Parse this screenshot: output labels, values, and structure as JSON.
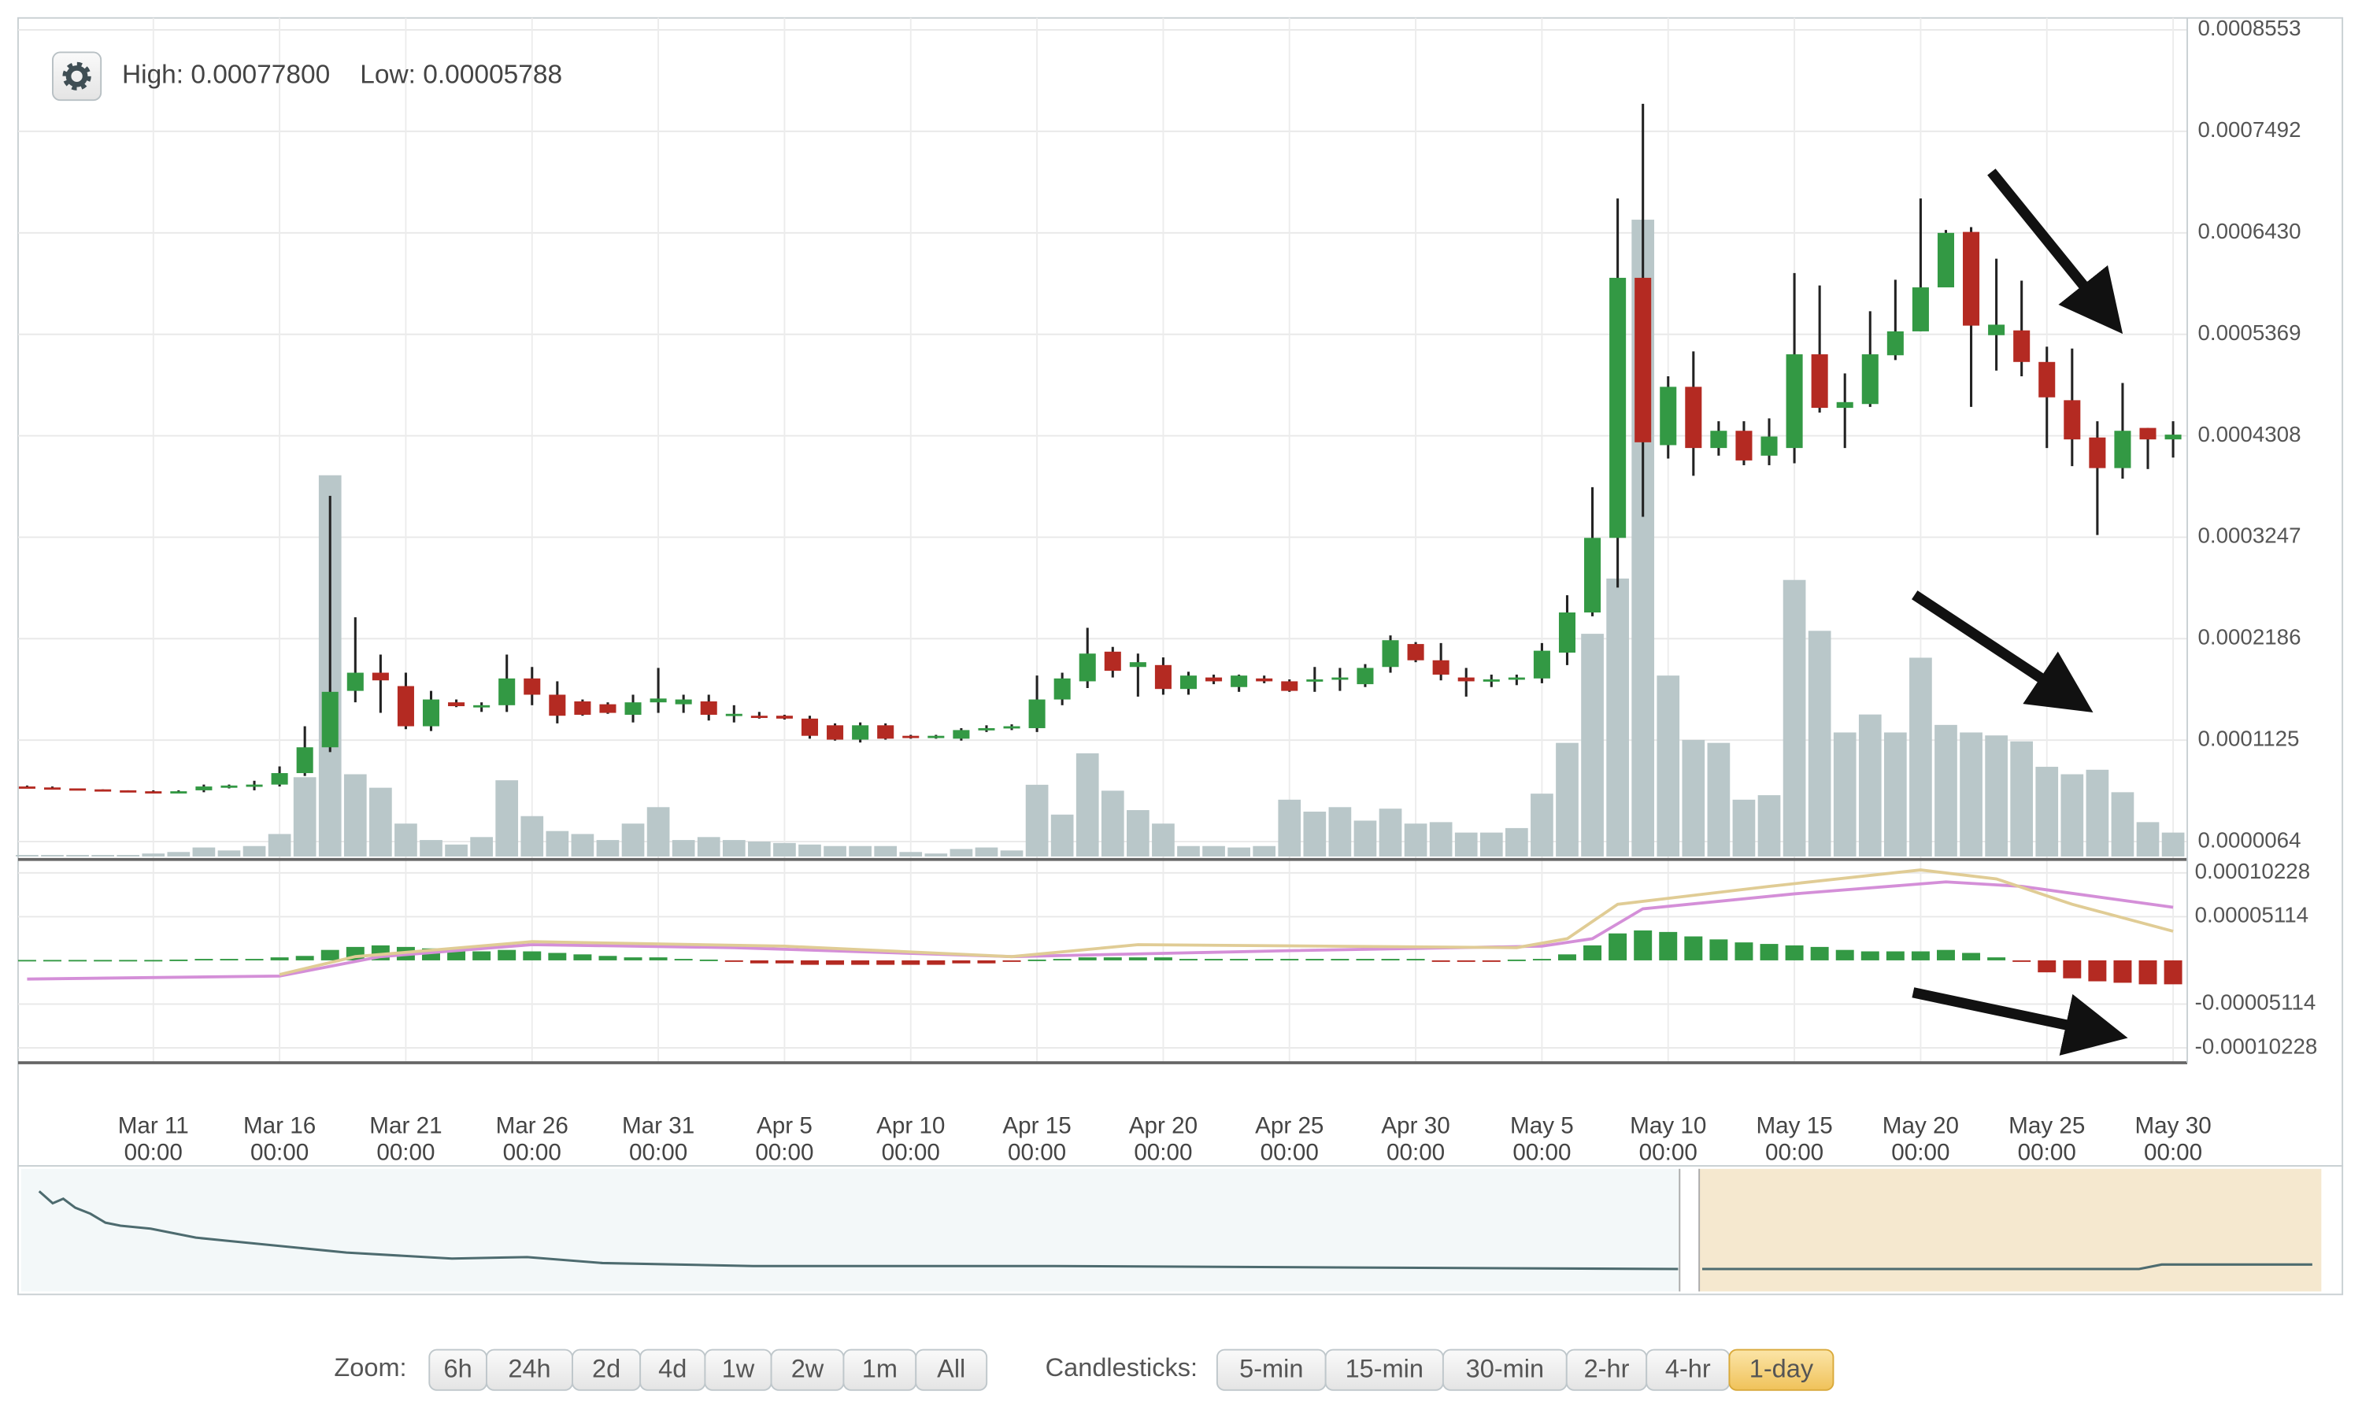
{
  "chart_data": {
    "type": "candlestick",
    "high_label": "High: 0.00077800",
    "low_label": "Low: 0.00005788",
    "categories": [
      "Mar 6",
      "Mar 7",
      "Mar 8",
      "Mar 9",
      "Mar 10",
      "Mar 11",
      "Mar 12",
      "Mar 13",
      "Mar 14",
      "Mar 15",
      "Mar 16",
      "Mar 17",
      "Mar 18",
      "Mar 19",
      "Mar 20",
      "Mar 21",
      "Mar 22",
      "Mar 23",
      "Mar 24",
      "Mar 25",
      "Mar 26",
      "Mar 27",
      "Mar 28",
      "Mar 29",
      "Mar 30",
      "Mar 31",
      "Apr 1",
      "Apr 2",
      "Apr 3",
      "Apr 4",
      "Apr 5",
      "Apr 6",
      "Apr 7",
      "Apr 8",
      "Apr 9",
      "Apr 10",
      "Apr 11",
      "Apr 12",
      "Apr 13",
      "Apr 14",
      "Apr 15",
      "Apr 16",
      "Apr 17",
      "Apr 18",
      "Apr 19",
      "Apr 20",
      "Apr 21",
      "Apr 22",
      "Apr 23",
      "Apr 24",
      "Apr 25",
      "Apr 26",
      "Apr 27",
      "Apr 28",
      "Apr 29",
      "Apr 30",
      "May 1",
      "May 2",
      "May 3",
      "May 4",
      "May 5",
      "May 6",
      "May 7",
      "May 8",
      "May 9",
      "May 10",
      "May 11",
      "May 12",
      "May 13",
      "May 14",
      "May 15",
      "May 16",
      "May 17",
      "May 18",
      "May 19",
      "May 20",
      "May 21",
      "May 22",
      "May 23",
      "May 24",
      "May 25",
      "May 26",
      "May 27",
      "May 28",
      "May 29",
      "May 30"
    ],
    "open": [
      6.4e-05,
      6.3e-05,
      6.2e-05,
      6.1e-05,
      6e-05,
      5.9e-05,
      5.9e-05,
      6e-05,
      6.4e-05,
      6.5e-05,
      6.6e-05,
      7.8e-05,
      0.000105,
      0.000164,
      0.000183,
      0.000169,
      0.000127,
      0.000152,
      0.000148,
      0.000149,
      0.000177,
      0.00016,
      0.000153,
      0.00015,
      0.000139,
      0.000152,
      0.00015,
      0.000153,
      0.000139,
      0.000138,
      0.000138,
      0.000135,
      0.000128,
      0.000113,
      0.000128,
      0.000117,
      0.000116,
      0.000114,
      0.000123,
      0.000125,
      0.000125,
      0.000155,
      0.000174,
      0.000205,
      0.000189,
      0.000191,
      0.000166,
      0.000178,
      0.000168,
      0.000177,
      0.000174,
      0.000174,
      0.000177,
      0.000171,
      0.000189,
      0.000213,
      0.000196,
      0.000178,
      0.000175,
      0.000176,
      0.000177,
      0.000204,
      0.000246,
      0.000324,
      0.000596,
      0.000421,
      0.000482,
      0.000418,
      0.000436,
      0.00041,
      0.000418,
      0.000516,
      0.00046,
      0.000464,
      0.000515,
      0.00054,
      0.000586,
      0.000644,
      0.000536,
      0.000541,
      0.000508,
      0.000468,
      0.000429,
      0.000397,
      0.000439,
      0.000427
    ],
    "high": [
      6.5e-05,
      6.4e-05,
      6.2e-05,
      6.1e-05,
      6e-05,
      6e-05,
      6e-05,
      6.6e-05,
      6.6e-05,
      7e-05,
      8.5e-05,
      0.000127,
      0.000368,
      0.000241,
      0.000202,
      0.000183,
      0.000164,
      0.000155,
      0.000152,
      0.000202,
      0.000189,
      0.000174,
      0.000155,
      0.000152,
      0.00016,
      0.000188,
      0.00016,
      0.00016,
      0.000149,
      0.000142,
      0.000139,
      0.000138,
      0.00013,
      0.000131,
      0.00013,
      0.000118,
      0.000118,
      0.000125,
      0.000128,
      0.000129,
      0.00018,
      0.000183,
      0.00023,
      0.00021,
      0.000203,
      0.000199,
      0.000184,
      0.000181,
      0.000181,
      0.00018,
      0.000176,
      0.000189,
      0.000188,
      0.000192,
      0.000222,
      0.000215,
      0.000214,
      0.000188,
      0.000181,
      0.000181,
      0.000214,
      0.000264,
      0.000377,
      0.000679,
      0.000778,
      0.000493,
      0.000519,
      0.000446,
      0.000446,
      0.000449,
      0.000601,
      0.000588,
      0.000496,
      0.000561,
      0.000594,
      0.000679,
      0.000646,
      0.000649,
      0.000616,
      0.000593,
      0.000524,
      0.000522,
      0.000446,
      0.000486,
      0.000439,
      0.000446
    ],
    "low": [
      6.2e-05,
      6.1e-05,
      6e-05,
      5.9e-05,
      5.788e-05,
      5.8e-05,
      5.8e-05,
      5.8e-05,
      6.2e-05,
      6e-05,
      6.4e-05,
      7.5e-05,
      0.0001,
      0.000152,
      0.000141,
      0.000124,
      0.000122,
      0.000147,
      0.000142,
      0.000142,
      0.000149,
      0.00013,
      0.000138,
      0.00014,
      0.000131,
      0.000141,
      0.000141,
      0.000133,
      0.000131,
      0.000135,
      0.000134,
      0.000114,
      0.000112,
      0.00011,
      0.000113,
      0.000114,
      0.000114,
      0.000112,
      0.000121,
      0.000123,
      0.000121,
      0.000149,
      0.000167,
      0.000178,
      0.000158,
      0.00016,
      0.00016,
      0.000171,
      0.000163,
      0.000172,
      0.000163,
      0.000163,
      0.000164,
      0.000168,
      0.000183,
      0.000194,
      0.000175,
      0.000158,
      0.000168,
      0.00017,
      0.000172,
      0.000191,
      0.000242,
      0.000272,
      0.000346,
      0.000407,
      0.000389,
      0.00041,
      0.0004,
      0.0004,
      0.000402,
      0.000455,
      0.000418,
      0.000461,
      0.00051,
      0.00054,
      0.000586,
      0.000461,
      0.000499,
      0.000493,
      0.000418,
      0.000399,
      0.000327,
      0.000386,
      0.000396,
      0.000408
    ],
    "close": [
      6.3e-05,
      6.2e-05,
      6.1e-05,
      6e-05,
      5.9e-05,
      5.8e-05,
      5.9e-05,
      6.4e-05,
      6.5e-05,
      6.6e-05,
      7.8e-05,
      0.000105,
      0.000163,
      0.000183,
      0.000175,
      0.000127,
      0.000155,
      0.000148,
      0.000149,
      0.000177,
      0.00016,
      0.000138,
      0.000139,
      0.000141,
      0.000152,
      0.000156,
      0.000155,
      0.000139,
      0.00014,
      0.000137,
      0.000135,
      0.000117,
      0.000113,
      0.000128,
      0.000114,
      0.000116,
      0.000117,
      0.000123,
      0.000125,
      0.000127,
      0.000155,
      0.000177,
      0.000203,
      0.000185,
      0.000194,
      0.000166,
      0.00018,
      0.000174,
      0.00018,
      0.000174,
      0.000164,
      0.000176,
      0.000178,
      0.000188,
      0.000217,
      0.000196,
      0.000181,
      0.000174,
      0.000176,
      0.000178,
      0.000206,
      0.000246,
      0.000324,
      0.000596,
      0.000424,
      0.000482,
      0.000418,
      0.000436,
      0.000405,
      0.00043,
      0.000516,
      0.00046,
      0.000466,
      0.000516,
      0.00054,
      0.000586,
      0.000643,
      0.000546,
      0.000547,
      0.000508,
      0.000471,
      0.000427,
      0.000397,
      0.000436,
      0.000427,
      0.000432
    ],
    "volume": [
      1.6e-06,
      1.6e-06,
      1.6e-06,
      1.6e-06,
      1.6e-06,
      3.1e-06,
      4.7e-06,
      9.4e-06,
      6.3e-06,
      1.09e-05,
      2.35e-05,
      8.29e-05,
      0.0003987,
      8.6e-05,
      7.19e-05,
      3.44e-05,
      1.72e-05,
      1.25e-05,
      2.03e-05,
      7.97e-05,
      4.22e-05,
      2.66e-05,
      2.35e-05,
      1.72e-05,
      3.44e-05,
      5.16e-05,
      1.72e-05,
      2.03e-05,
      1.72e-05,
      1.56e-05,
      1.41e-05,
      1.25e-05,
      1.09e-05,
      1.09e-05,
      1.09e-05,
      4.7e-06,
      3.1e-06,
      7.8e-06,
      9.4e-06,
      6.3e-06,
      7.5e-05,
      4.38e-05,
      0.0001079,
      6.88e-05,
      4.85e-05,
      3.44e-05,
      1.09e-05,
      1.09e-05,
      9.4e-06,
      1.09e-05,
      5.94e-05,
      4.69e-05,
      5.16e-05,
      3.75e-05,
      5e-05,
      3.44e-05,
      3.59e-05,
      2.5e-05,
      2.5e-05,
      2.97e-05,
      6.57e-05,
      0.0001188,
      0.0002329,
      0.0002907,
      0.000666,
      0.0001892,
      0.0001219,
      0.0001188,
      5.94e-05,
      6.41e-05,
      0.0002892,
      0.000236,
      0.0001297,
      0.0001485,
      0.0001297,
      0.0002079,
      0.0001376,
      0.0001297,
      0.0001266,
      0.0001204,
      9.38e-05,
      8.6e-05,
      9.07e-05,
      6.72e-05,
      3.59e-05,
      2.5e-05
    ],
    "up_color": "#339944",
    "down_color": "#b42a22",
    "volume_color": "#b9c7c9",
    "ylim": [
      -9.2e-06,
      0.0008678
    ],
    "yticks": [
      {
        "value": 6.4e-06,
        "label": "0.0000064"
      },
      {
        "value": 0.0001125,
        "label": "0.0001125"
      },
      {
        "value": 0.0002186,
        "label": "0.0002186"
      },
      {
        "value": 0.0003247,
        "label": "0.0003247"
      },
      {
        "value": 0.0004308,
        "label": "0.0004308"
      },
      {
        "value": 0.0005369,
        "label": "0.0005369"
      },
      {
        "value": 0.000643,
        "label": "0.0006430"
      },
      {
        "value": 0.0007492,
        "label": "0.0007492"
      },
      {
        "value": 0.0008553,
        "label": "0.0008553"
      }
    ],
    "xticks": [
      {
        "value": "Mar 11",
        "time": "00:00"
      },
      {
        "value": "Mar 16",
        "time": "00:00"
      },
      {
        "value": "Mar 21",
        "time": "00:00"
      },
      {
        "value": "Mar 26",
        "time": "00:00"
      },
      {
        "value": "Mar 31",
        "time": "00:00"
      },
      {
        "value": "Apr 5",
        "time": "00:00"
      },
      {
        "value": "Apr 10",
        "time": "00:00"
      },
      {
        "value": "Apr 15",
        "time": "00:00"
      },
      {
        "value": "Apr 20",
        "time": "00:00"
      },
      {
        "value": "Apr 25",
        "time": "00:00"
      },
      {
        "value": "Apr 30",
        "time": "00:00"
      },
      {
        "value": "May 5",
        "time": "00:00"
      },
      {
        "value": "May 10",
        "time": "00:00"
      },
      {
        "value": "May 15",
        "time": "00:00"
      },
      {
        "value": "May 20",
        "time": "00:00"
      },
      {
        "value": "May 25",
        "time": "00:00"
      },
      {
        "value": "May 30",
        "time": "00:00"
      }
    ],
    "grid": true,
    "macd": {
      "ylim": [
        -0.000118,
        0.0001145
      ],
      "yticks": [
        {
          "value": 0.00010228,
          "label": "0.00010228"
        },
        {
          "value": 5.114e-05,
          "label": "0.00005114"
        },
        {
          "value": -5.114e-05,
          "label": "-0.00005114"
        },
        {
          "value": -0.00010228,
          "label": "-0.00010228"
        }
      ],
      "histogram": [
        5e-07,
        5e-07,
        5e-07,
        5e-07,
        5e-07,
        5e-07,
        9e-07,
        1.7e-06,
        1.7e-06,
        1.7e-06,
        3.5e-06,
        5.2e-06,
        1.22e-05,
        1.57e-05,
        1.75e-05,
        1.57e-05,
        1.4e-05,
        1.22e-05,
        1.05e-05,
        1.22e-05,
        1.05e-05,
        8.7e-06,
        7e-06,
        5.2e-06,
        3.5e-06,
        3.5e-06,
        1.7e-06,
        9e-07,
        -1.7e-06,
        -3.5e-06,
        -3.5e-06,
        -5.2e-06,
        -5.2e-06,
        -5.2e-06,
        -5.2e-06,
        -5.2e-06,
        -5.2e-06,
        -3.5e-06,
        -3.5e-06,
        -1.7e-06,
        9e-07,
        1.7e-06,
        3.5e-06,
        3.5e-06,
        3.5e-06,
        3.5e-06,
        1.7e-06,
        1.7e-06,
        1.7e-06,
        1.7e-06,
        1.7e-06,
        1.7e-06,
        1.7e-06,
        1.7e-06,
        1.7e-06,
        1.7e-06,
        -1.7e-06,
        -1.7e-06,
        -1.7e-06,
        9e-07,
        1.7e-06,
        7e-06,
        1.75e-05,
        3.15e-05,
        3.5e-05,
        3.32e-05,
        2.8e-05,
        2.45e-05,
        2.1e-05,
        1.92e-05,
        1.75e-05,
        1.57e-05,
        1.22e-05,
        1.05e-05,
        1.05e-05,
        1.05e-05,
        1.22e-05,
        8.7e-06,
        3.5e-06,
        -1.7e-06,
        -1.4e-05,
        -2.1e-05,
        -2.45e-05,
        -2.62e-05,
        -2.8e-05,
        -2.8e-05
      ],
      "lines": [
        {
          "color": "#d48fd8",
          "x": [
            "Mar 6",
            "Mar 16",
            "Mar 20",
            "Mar 26",
            "Apr 3",
            "Apr 14",
            "Apr 25",
            "May 5",
            "May 7",
            "May 9",
            "May 15",
            "May 21",
            "May 24",
            "May 30"
          ],
          "values": [
            -2.19e-05,
            -1.84e-05,
            4.4e-06,
            1.84e-05,
            1.49e-05,
            4.4e-06,
            1.14e-05,
            1.66e-05,
            2.54e-05,
            6.03e-05,
            7.78e-05,
            9.18e-05,
            8.65e-05,
            6.21e-05
          ]
        },
        {
          "color": "#e0cc95",
          "x": [
            "Mar 16",
            "Mar 19",
            "Mar 26",
            "Apr 5",
            "Apr 14",
            "Apr 19",
            "May 4",
            "May 6",
            "May 8",
            "May 14",
            "May 20",
            "May 23",
            "May 26",
            "May 30"
          ],
          "values": [
            -1.66e-05,
            4.4e-06,
            2.19e-05,
            1.66e-05,
            4.4e-06,
            1.84e-05,
            1.49e-05,
            2.54e-05,
            6.56e-05,
            8.65e-05,
            0.0001058,
            9.53e-05,
            6.56e-05,
            3.41e-05
          ]
        }
      ]
    }
  },
  "controls": {
    "zoom_label": "Zoom:",
    "zoom": [
      "6h",
      "24h",
      "2d",
      "4d",
      "1w",
      "2w",
      "1m",
      "All"
    ],
    "candle_label": "Candlesticks:",
    "candles": [
      "5-min",
      "15-min",
      "30-min",
      "2-hr",
      "4-hr",
      "1-day"
    ],
    "active_candle": 5
  }
}
